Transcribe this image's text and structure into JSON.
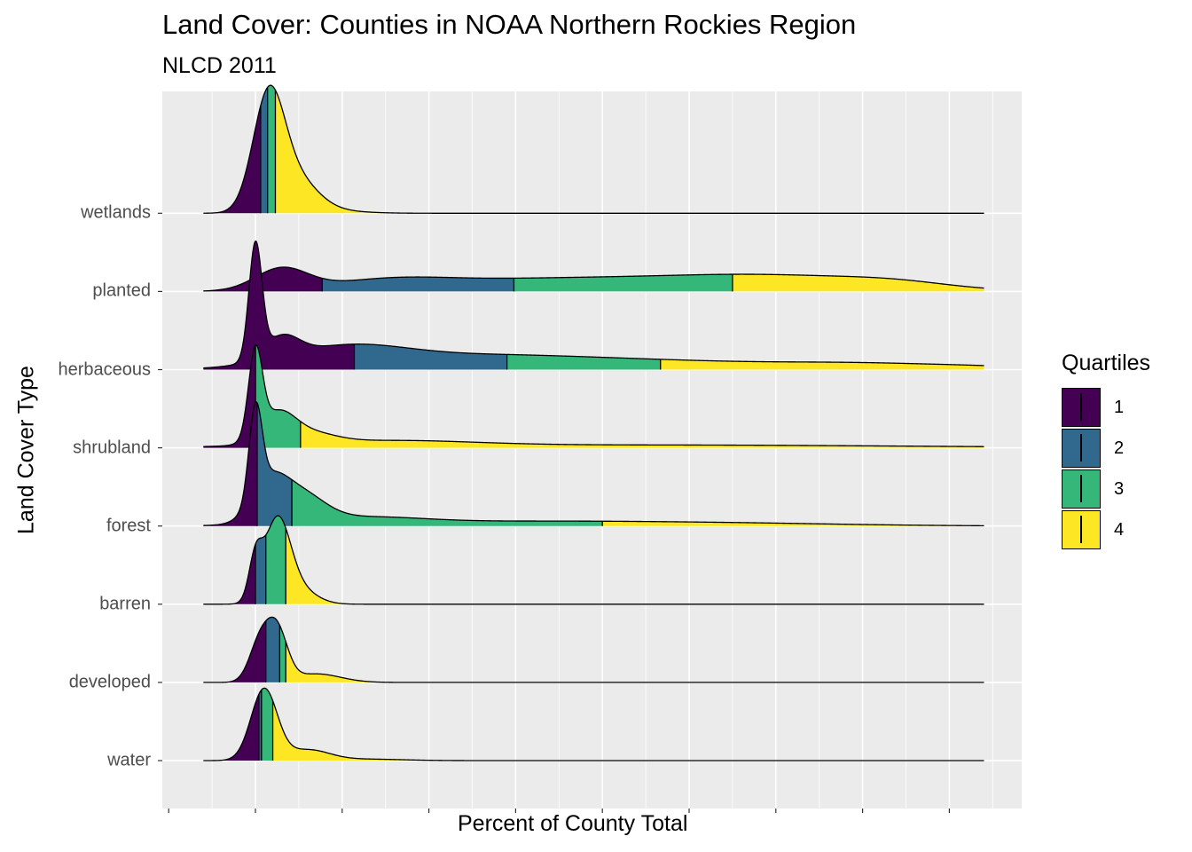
{
  "chart_data": {
    "type": "area",
    "title": "Land Cover: Counties in NOAA Northern Rockies Region",
    "subtitle": "NLCD 2011",
    "xlabel": "Percent of County Total",
    "ylabel": "Land Cover Type",
    "xlim": [
      -5,
      95
    ],
    "grid": true,
    "legend_placement": "right",
    "legend": {
      "title": "Quartiles",
      "entries": [
        "1",
        "2",
        "3",
        "4"
      ],
      "colors": [
        "#440154",
        "#31688e",
        "#35b779",
        "#fde725"
      ]
    },
    "categories": [
      "water",
      "developed",
      "barren",
      "forest",
      "shrubland",
      "herbaceous",
      "planted",
      "wetlands"
    ],
    "series": [
      {
        "category": "water",
        "range": [
          -6,
          84
        ],
        "quartile_breaks": [
          0.4,
          0.7,
          2.0
        ],
        "peaks": [
          [
            1,
            1.5,
            1.0
          ],
          [
            6,
            2.5,
            0.15
          ],
          [
            13,
            4,
            0.02
          ]
        ]
      },
      {
        "category": "developed",
        "range": [
          -6,
          84
        ],
        "quartile_breaks": [
          1.2,
          2.8,
          3.5
        ],
        "peaks": [
          [
            0.5,
            1.2,
            0.55
          ],
          [
            2.5,
            1.2,
            0.7
          ],
          [
            7,
            2.8,
            0.12
          ]
        ]
      },
      {
        "category": "barren",
        "range": [
          -6,
          84
        ],
        "quartile_breaks": [
          0.0,
          1.2,
          3.5
        ],
        "peaks": [
          [
            0,
            0.75,
            0.55
          ],
          [
            2.5,
            1.5,
            1.15
          ],
          [
            5,
            2,
            0.2
          ]
        ]
      },
      {
        "category": "forest",
        "range": [
          -6,
          84
        ],
        "quartile_breaks": [
          0.2,
          4.2,
          40.0
        ],
        "peaks": [
          [
            0,
            0.75,
            1.25
          ],
          [
            1.5,
            2,
            0.5
          ],
          [
            5,
            2.8,
            0.4
          ],
          [
            12,
            7,
            0.1
          ],
          [
            30,
            15,
            0.06
          ],
          [
            55,
            14,
            0.035
          ]
        ]
      },
      {
        "category": "shrubland",
        "range": [
          -6,
          84
        ],
        "quartile_breaks": [
          0.0,
          0.0,
          5.2
        ],
        "peaks": [
          [
            0,
            0.8,
            1.2
          ],
          [
            2.5,
            2,
            0.4
          ],
          [
            6,
            3,
            0.15
          ],
          [
            15,
            10,
            0.08
          ],
          [
            45,
            30,
            0.04
          ]
        ]
      },
      {
        "category": "herbaceous",
        "range": [
          -6,
          84
        ],
        "quartile_breaks": [
          11.4,
          29.0,
          46.7
        ],
        "peaks": [
          [
            0,
            0.75,
            1.6
          ],
          [
            3,
            2,
            0.3
          ],
          [
            10,
            7,
            0.28
          ],
          [
            22,
            10,
            0.12
          ],
          [
            35,
            12,
            0.1
          ],
          [
            52,
            15,
            0.08
          ],
          [
            72,
            10,
            0.06
          ],
          [
            85,
            6,
            0.02
          ]
        ]
      },
      {
        "category": "planted",
        "range": [
          -6,
          84
        ],
        "quartile_breaks": [
          7.7,
          29.8,
          55.0
        ],
        "peaks": [
          [
            3,
            3,
            0.3
          ],
          [
            15,
            7,
            0.12
          ],
          [
            28,
            12,
            0.11
          ],
          [
            46,
            14,
            0.12
          ],
          [
            62,
            12,
            0.16
          ],
          [
            74,
            6,
            0.06
          ]
        ]
      },
      {
        "category": "wetlands",
        "range": [
          -6,
          84
        ],
        "quartile_breaks": [
          0.6,
          1.4,
          2.3
        ],
        "peaks": [
          [
            1.5,
            1.8,
            1.55
          ],
          [
            4.5,
            2.5,
            0.45
          ],
          [
            7,
            4,
            0.05
          ]
        ]
      }
    ]
  }
}
